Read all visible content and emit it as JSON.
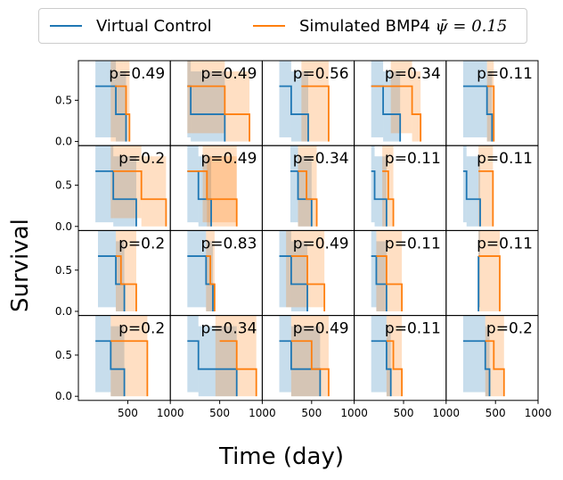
{
  "legend": {
    "control": {
      "label": "Virtual Control",
      "color": "#1f77b4"
    },
    "bmp4": {
      "label_prefix": "Simulated BMP4 ",
      "label_math": "ψ̄ = 0.15",
      "color": "#ff7f0e"
    }
  },
  "ylabel": "Survival",
  "xlabel": "Time (day)",
  "chart_data": {
    "type": "line",
    "layout": "4x5 grid of Kaplan-Meier survival curves",
    "xlabel": "Time (day)",
    "ylabel": "Survival",
    "y_ticks": [
      "0.0",
      "0.5"
    ],
    "x_ticks": [
      "500",
      "1000"
    ],
    "x_tick_values": [
      500,
      1000
    ],
    "xlim": [
      0,
      1000
    ],
    "ylim": [
      0,
      1
    ],
    "series_colors": {
      "control": "#1f77b4",
      "bmp4": "#ff7f0e"
    },
    "panels": [
      {
        "p": "p=0.49",
        "ctrl": [
          [
            120,
            0.67
          ],
          [
            360,
            0.33
          ],
          [
            480,
            0.0
          ]
        ],
        "ctrl_band": [
          [
            120,
            360,
            0.05,
            1.0
          ],
          [
            360,
            480,
            0.0,
            0.85
          ]
        ],
        "bmp": [
          [
            350,
            0.67
          ],
          [
            480,
            0.33
          ],
          [
            520,
            0.0
          ]
        ],
        "bmp_band": [
          [
            300,
            450,
            0.0,
            1.0
          ],
          [
            450,
            520,
            0.0,
            1.0
          ]
        ]
      },
      {
        "p": "p=0.49",
        "ctrl": [
          [
            120,
            0.67
          ],
          [
            160,
            0.33
          ],
          [
            560,
            0.0
          ]
        ],
        "ctrl_band": [
          [
            120,
            160,
            0.05,
            1.0
          ],
          [
            160,
            560,
            0.0,
            0.85
          ]
        ],
        "bmp": [
          [
            120,
            0.67
          ],
          [
            560,
            0.33
          ],
          [
            850,
            0.0
          ]
        ],
        "bmp_band": [
          [
            120,
            560,
            0.1,
            1.0
          ],
          [
            560,
            850,
            0.0,
            0.85
          ]
        ]
      },
      {
        "p": "p=0.56",
        "ctrl": [
          [
            120,
            0.67
          ],
          [
            260,
            0.33
          ],
          [
            460,
            0.0
          ]
        ],
        "ctrl_band": [
          [
            120,
            260,
            0.05,
            1.0
          ],
          [
            260,
            460,
            0.0,
            0.85
          ]
        ],
        "bmp": [
          [
            380,
            0.67
          ],
          [
            700,
            0.0
          ]
        ],
        "bmp_band": [
          [
            380,
            700,
            0.0,
            1.0
          ]
        ]
      },
      {
        "p": "p=0.34",
        "ctrl": [
          [
            120,
            0.67
          ],
          [
            260,
            0.33
          ],
          [
            460,
            0.0
          ]
        ],
        "ctrl_band": [
          [
            120,
            260,
            0.05,
            1.0
          ],
          [
            260,
            460,
            0.0,
            0.85
          ]
        ],
        "bmp": [
          [
            120,
            0.67
          ],
          [
            600,
            0.33
          ],
          [
            700,
            0.0
          ]
        ],
        "bmp_band": [
          [
            350,
            600,
            0.1,
            1.0
          ],
          [
            600,
            700,
            0.0,
            0.85
          ]
        ]
      },
      {
        "p": "p=0.11",
        "ctrl": [
          [
            120,
            0.67
          ],
          [
            400,
            0.33
          ],
          [
            460,
            0.0
          ]
        ],
        "ctrl_band": [
          [
            120,
            400,
            0.05,
            1.0
          ],
          [
            400,
            460,
            0.0,
            0.85
          ]
        ],
        "bmp": [
          [
            400,
            0.67
          ],
          [
            480,
            0.0
          ]
        ],
        "bmp_band": [
          [
            400,
            480,
            0.0,
            1.0
          ]
        ]
      },
      {
        "p": "p=0.2",
        "ctrl": [
          [
            120,
            0.67
          ],
          [
            330,
            0.33
          ],
          [
            600,
            0.0
          ]
        ],
        "ctrl_band": [
          [
            120,
            330,
            0.05,
            1.0
          ],
          [
            330,
            600,
            0.0,
            0.85
          ]
        ],
        "bmp": [
          [
            330,
            0.67
          ],
          [
            660,
            0.33
          ],
          [
            950,
            0.0
          ]
        ],
        "bmp_band": [
          [
            300,
            660,
            0.1,
            1.0
          ],
          [
            660,
            950,
            0.0,
            0.85
          ]
        ]
      },
      {
        "p": "p=0.49",
        "ctrl": [
          [
            120,
            0.67
          ],
          [
            250,
            0.33
          ],
          [
            400,
            0.0
          ]
        ],
        "ctrl_band": [
          [
            120,
            250,
            0.05,
            1.0
          ],
          [
            250,
            400,
            0.0,
            0.85
          ]
        ],
        "bmp": [
          [
            120,
            0.67
          ],
          [
            350,
            0.33
          ],
          [
            700,
            0.0
          ]
        ],
        "bmp_band": [
          [
            300,
            700,
            0.05,
            1.0
          ],
          [
            350,
            700,
            0.0,
            0.85
          ]
        ]
      },
      {
        "p": "p=0.34",
        "ctrl": [
          [
            250,
            0.67
          ],
          [
            340,
            0.33
          ],
          [
            500,
            0.0
          ]
        ],
        "ctrl_band": [
          [
            250,
            340,
            0.05,
            1.0
          ],
          [
            340,
            500,
            0.0,
            0.85
          ]
        ],
        "bmp": [
          [
            340,
            0.67
          ],
          [
            440,
            0.33
          ],
          [
            560,
            0.0
          ]
        ],
        "bmp_band": [
          [
            340,
            560,
            0.0,
            1.0
          ]
        ]
      },
      {
        "p": "p=0.11",
        "ctrl": [
          [
            120,
            0.67
          ],
          [
            160,
            0.33
          ],
          [
            300,
            0.0
          ]
        ],
        "ctrl_band": [
          [
            120,
            160,
            0.05,
            1.0
          ],
          [
            160,
            300,
            0.0,
            0.85
          ]
        ],
        "bmp": [
          [
            250,
            0.67
          ],
          [
            320,
            0.33
          ],
          [
            380,
            0.0
          ]
        ],
        "bmp_band": [
          [
            250,
            380,
            0.0,
            1.0
          ]
        ]
      },
      {
        "p": "p=0.11",
        "ctrl": [
          [
            120,
            0.67
          ],
          [
            160,
            0.33
          ],
          [
            320,
            0.0
          ]
        ],
        "ctrl_band": [
          [
            120,
            160,
            0.05,
            1.0
          ],
          [
            160,
            320,
            0.0,
            0.85
          ]
        ],
        "bmp": [
          [
            300,
            0.67
          ],
          [
            470,
            0.0
          ]
        ],
        "bmp_band": [
          [
            300,
            470,
            0.0,
            1.0
          ]
        ]
      },
      {
        "p": "p=0.2",
        "ctrl": [
          [
            150,
            0.67
          ],
          [
            360,
            0.33
          ],
          [
            460,
            0.0
          ]
        ],
        "ctrl_band": [
          [
            150,
            360,
            0.05,
            1.0
          ],
          [
            360,
            460,
            0.0,
            0.85
          ]
        ],
        "bmp": [
          [
            360,
            0.67
          ],
          [
            420,
            0.33
          ],
          [
            600,
            0.0
          ]
        ],
        "bmp_band": [
          [
            360,
            600,
            0.0,
            1.0
          ]
        ]
      },
      {
        "p": "p=0.83",
        "ctrl": [
          [
            120,
            0.67
          ],
          [
            340,
            0.33
          ],
          [
            420,
            0.0
          ]
        ],
        "ctrl_band": [
          [
            120,
            340,
            0.05,
            1.0
          ],
          [
            340,
            420,
            0.0,
            0.85
          ]
        ],
        "bmp": [
          [
            340,
            0.67
          ],
          [
            390,
            0.33
          ],
          [
            440,
            0.0
          ]
        ],
        "bmp_band": [
          [
            340,
            440,
            0.0,
            1.0
          ]
        ]
      },
      {
        "p": "p=0.49",
        "ctrl": [
          [
            120,
            0.67
          ],
          [
            260,
            0.33
          ],
          [
            450,
            0.0
          ]
        ],
        "ctrl_band": [
          [
            120,
            260,
            0.05,
            1.0
          ],
          [
            260,
            450,
            0.0,
            0.85
          ]
        ],
        "bmp": [
          [
            260,
            0.67
          ],
          [
            450,
            0.33
          ],
          [
            650,
            0.0
          ]
        ],
        "bmp_band": [
          [
            200,
            650,
            0.05,
            1.0
          ]
        ]
      },
      {
        "p": "p=0.11",
        "ctrl": [
          [
            120,
            0.67
          ],
          [
            180,
            0.33
          ],
          [
            300,
            0.0
          ]
        ],
        "ctrl_band": [
          [
            120,
            180,
            0.05,
            1.0
          ],
          [
            180,
            300,
            0.0,
            0.85
          ]
        ],
        "bmp": [
          [
            180,
            0.67
          ],
          [
            300,
            0.33
          ],
          [
            480,
            0.0
          ]
        ],
        "bmp_band": [
          [
            180,
            480,
            0.0,
            1.0
          ]
        ]
      },
      {
        "p": "p=0.11",
        "ctrl": [
          [
            300,
            0.67
          ],
          [
            300,
            0.0
          ]
        ],
        "ctrl_band": [
          [
            300,
            300,
            0.05,
            1.0
          ]
        ],
        "bmp": [
          [
            300,
            0.67
          ],
          [
            550,
            0.0
          ]
        ],
        "bmp_band": [
          [
            300,
            550,
            0.0,
            1.0
          ]
        ]
      },
      {
        "p": "p=0.2",
        "ctrl": [
          [
            120,
            0.67
          ],
          [
            300,
            0.33
          ],
          [
            460,
            0.0
          ]
        ],
        "ctrl_band": [
          [
            120,
            300,
            0.05,
            1.0
          ],
          [
            300,
            460,
            0.0,
            0.85
          ]
        ],
        "bmp": [
          [
            300,
            0.67
          ],
          [
            730,
            0.33
          ],
          [
            730,
            0.0
          ]
        ],
        "bmp_band": [
          [
            300,
            730,
            0.0,
            1.0
          ]
        ]
      },
      {
        "p": "p=0.34",
        "ctrl": [
          [
            120,
            0.67
          ],
          [
            250,
            0.33
          ],
          [
            700,
            0.0
          ]
        ],
        "ctrl_band": [
          [
            120,
            250,
            0.05,
            1.0
          ],
          [
            250,
            700,
            0.0,
            0.85
          ]
        ],
        "bmp": [
          [
            500,
            0.67
          ],
          [
            700,
            0.33
          ],
          [
            930,
            0.0
          ]
        ],
        "bmp_band": [
          [
            450,
            930,
            0.0,
            1.0
          ]
        ]
      },
      {
        "p": "p=0.49",
        "ctrl": [
          [
            120,
            0.67
          ],
          [
            260,
            0.33
          ],
          [
            600,
            0.0
          ]
        ],
        "ctrl_band": [
          [
            120,
            260,
            0.05,
            1.0
          ],
          [
            260,
            600,
            0.0,
            0.85
          ]
        ],
        "bmp": [
          [
            260,
            0.67
          ],
          [
            500,
            0.33
          ],
          [
            700,
            0.0
          ]
        ],
        "bmp_band": [
          [
            260,
            700,
            0.0,
            1.0
          ]
        ]
      },
      {
        "p": "p=0.11",
        "ctrl": [
          [
            120,
            0.67
          ],
          [
            300,
            0.33
          ],
          [
            350,
            0.0
          ]
        ],
        "ctrl_band": [
          [
            120,
            300,
            0.05,
            1.0
          ],
          [
            300,
            350,
            0.0,
            0.85
          ]
        ],
        "bmp": [
          [
            300,
            0.67
          ],
          [
            380,
            0.33
          ],
          [
            480,
            0.0
          ]
        ],
        "bmp_band": [
          [
            300,
            480,
            0.0,
            1.0
          ]
        ]
      },
      {
        "p": "p=0.2",
        "ctrl": [
          [
            120,
            0.67
          ],
          [
            380,
            0.33
          ],
          [
            430,
            0.0
          ]
        ],
        "ctrl_band": [
          [
            120,
            380,
            0.05,
            1.0
          ],
          [
            380,
            430,
            0.0,
            0.85
          ]
        ],
        "bmp": [
          [
            380,
            0.67
          ],
          [
            480,
            0.33
          ],
          [
            600,
            0.0
          ]
        ],
        "bmp_band": [
          [
            380,
            600,
            0.0,
            1.0
          ]
        ]
      }
    ]
  }
}
